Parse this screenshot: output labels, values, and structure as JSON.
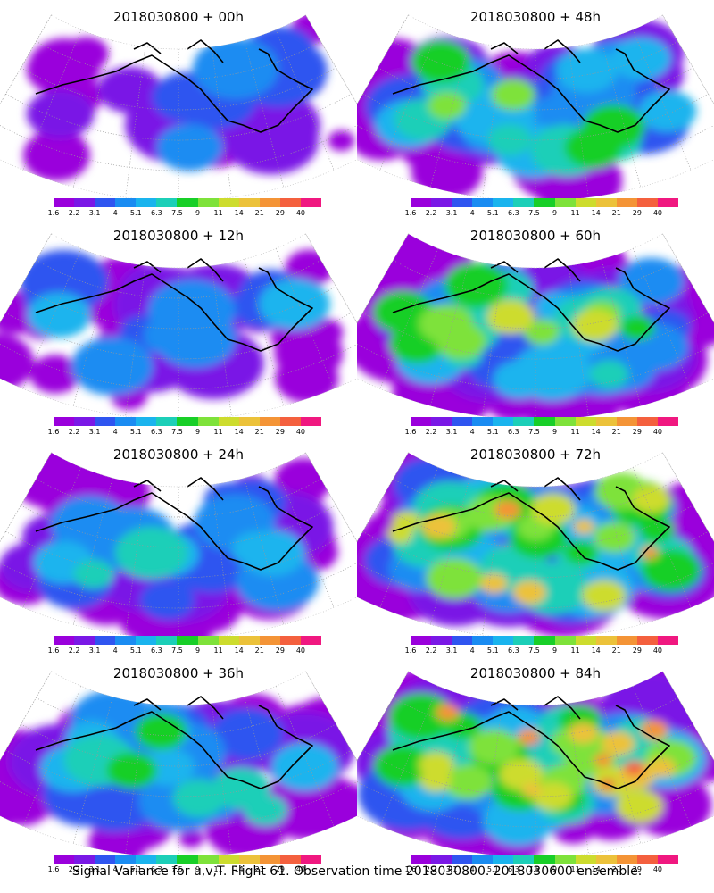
{
  "chart_data": {
    "type": "heatmap",
    "footer": "Signal Variance for u,v,T. Flight 61. Observation time 2018030800. 2018030600 ensemble.",
    "colorbar": {
      "labels": [
        "1.6",
        "2.2",
        "3.1",
        "4",
        "5.1",
        "6.3",
        "7.5",
        "9",
        "11",
        "14",
        "21",
        "29",
        "40"
      ],
      "colors": [
        "#9a00dc",
        "#7a18e6",
        "#2f55f0",
        "#1a8cf2",
        "#1ab4ee",
        "#1ccfb8",
        "#18cf28",
        "#7ee23a",
        "#cddc2e",
        "#ecc23a",
        "#f49436",
        "#f4603e",
        "#f01880"
      ]
    },
    "panels": [
      {
        "title": "2018030800 + 00h",
        "level": 0.15
      },
      {
        "title": "2018030800 + 48h",
        "level": 0.55
      },
      {
        "title": "2018030800 + 12h",
        "level": 0.25
      },
      {
        "title": "2018030800 + 60h",
        "level": 0.7
      },
      {
        "title": "2018030800 + 24h",
        "level": 0.35
      },
      {
        "title": "2018030800 + 72h",
        "level": 0.85
      },
      {
        "title": "2018030800 + 36h",
        "level": 0.45
      },
      {
        "title": "2018030800 + 84h",
        "level": 1.0
      }
    ]
  }
}
